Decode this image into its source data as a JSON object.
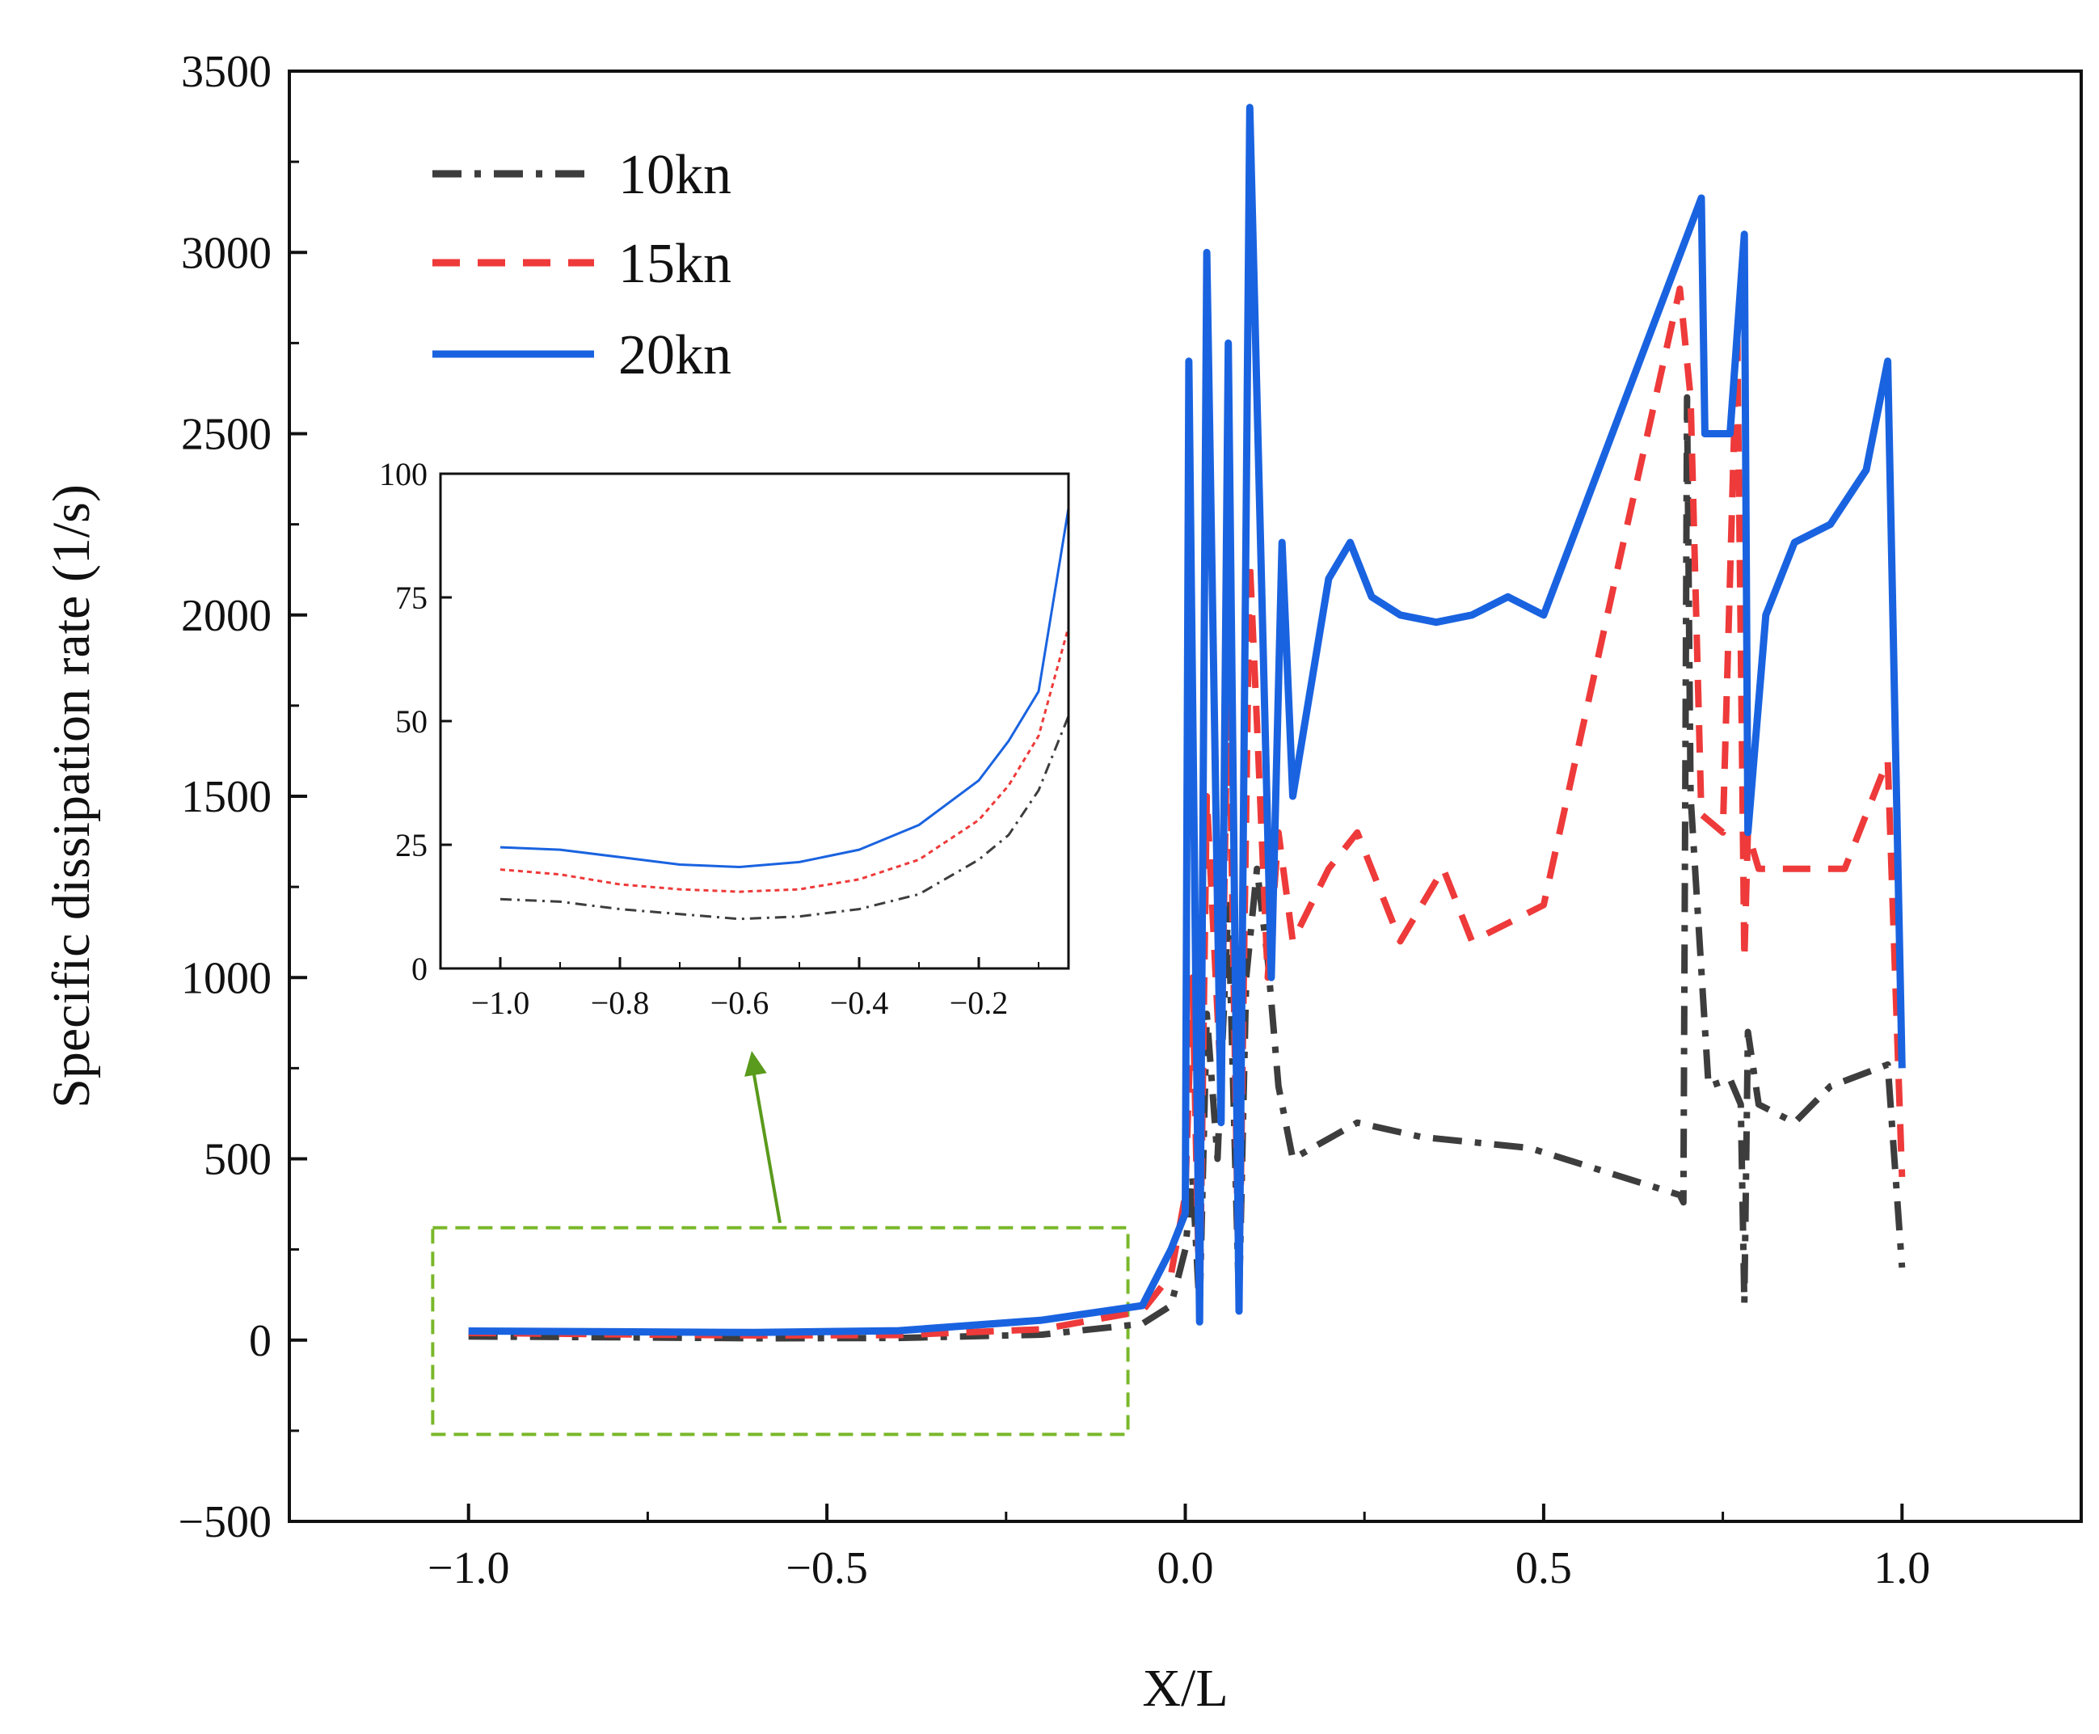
{
  "chart_data": [
    {
      "type": "line",
      "xlabel": "X/L",
      "ylabel": "Specific dissipation rate (1/s)",
      "xlim": [
        -1.25,
        1.25
      ],
      "ylim": [
        -500,
        3500
      ],
      "xticks": [
        "-1.0",
        "-0.5",
        "0.0",
        "0.5",
        "1.0"
      ],
      "yticks": [
        "-500",
        "0",
        "500",
        "1000",
        "1500",
        "2000",
        "2500",
        "3000",
        "3500"
      ],
      "legend_position": "top-left",
      "grid": false,
      "series": [
        {
          "name": "10kn",
          "color": "#3d3d3d",
          "style": "dashdot",
          "x": [
            -1.0,
            -0.8,
            -0.6,
            -0.4,
            -0.2,
            -0.06,
            -0.02,
            0.0,
            0.01,
            0.02,
            0.03,
            0.045,
            0.06,
            0.075,
            0.085,
            0.1,
            0.115,
            0.13,
            0.15,
            0.24,
            0.33,
            0.48,
            0.69,
            0.695,
            0.7,
            0.705,
            0.73,
            0.76,
            0.775,
            0.78,
            0.785,
            0.8,
            0.85,
            0.9,
            0.98,
            1.0
          ],
          "y": [
            10,
            8,
            5,
            6,
            15,
            45,
            95,
            250,
            450,
            80,
            900,
            500,
            1200,
            100,
            1000,
            1300,
            1050,
            700,
            500,
            600,
            560,
            530,
            400,
            380,
            2600,
            1500,
            700,
            720,
            650,
            100,
            850,
            650,
            600,
            700,
            760,
            200
          ]
        },
        {
          "name": "15kn",
          "color": "#ee3a3a",
          "style": "dashed",
          "x": [
            -1.0,
            -0.8,
            -0.6,
            -0.4,
            -0.2,
            -0.06,
            -0.02,
            0.0,
            0.01,
            0.02,
            0.03,
            0.05,
            0.06,
            0.075,
            0.09,
            0.1,
            0.115,
            0.13,
            0.15,
            0.2,
            0.24,
            0.3,
            0.36,
            0.4,
            0.5,
            0.6,
            0.69,
            0.705,
            0.72,
            0.75,
            0.77,
            0.78,
            0.785,
            0.8,
            0.85,
            0.92,
            0.98,
            1.0
          ],
          "y": [
            20,
            16,
            13,
            14,
            30,
            80,
            180,
            400,
            1000,
            60,
            1500,
            700,
            1900,
            80,
            2150,
            1700,
            1000,
            1400,
            1100,
            1300,
            1400,
            1100,
            1300,
            1100,
            1200,
            2100,
            2900,
            2600,
            1450,
            1400,
            2800,
            1050,
            1400,
            1300,
            1300,
            1300,
            1600,
            450
          ]
        },
        {
          "name": "20kn",
          "color": "#1a63e0",
          "style": "solid",
          "x": [
            -1.0,
            -0.8,
            -0.6,
            -0.4,
            -0.2,
            -0.06,
            -0.02,
            0.0,
            0.005,
            0.02,
            0.03,
            0.05,
            0.06,
            0.075,
            0.09,
            0.1,
            0.12,
            0.135,
            0.15,
            0.2,
            0.23,
            0.26,
            0.3,
            0.35,
            0.4,
            0.45,
            0.5,
            0.72,
            0.725,
            0.76,
            0.78,
            0.785,
            0.81,
            0.85,
            0.9,
            0.95,
            0.98,
            1.0
          ],
          "y": [
            25,
            23,
            21,
            26,
            55,
            95,
            250,
            350,
            2700,
            50,
            3000,
            600,
            2750,
            80,
            3400,
            2600,
            1000,
            2200,
            1500,
            2100,
            2200,
            2050,
            2000,
            1980,
            2000,
            2050,
            2000,
            3150,
            2500,
            2500,
            3050,
            1400,
            2000,
            2200,
            2250,
            2400,
            2700,
            750
          ]
        }
      ],
      "highlight_region": {
        "x": [
          -1.05,
          -0.08
        ],
        "y": [
          -260,
          310
        ]
      }
    },
    {
      "type": "line",
      "inset": true,
      "xlim": [
        -1.1,
        -0.05
      ],
      "ylim": [
        0,
        100
      ],
      "xticks": [
        "-1.0",
        "-0.8",
        "-0.6",
        "-0.4",
        "-0.2"
      ],
      "yticks": [
        "0",
        "25",
        "50",
        "75",
        "100"
      ],
      "series": [
        {
          "name": "10kn",
          "color": "#3d3d3d",
          "style": "dashdot",
          "x": [
            -1.0,
            -0.9,
            -0.8,
            -0.7,
            -0.6,
            -0.5,
            -0.4,
            -0.3,
            -0.2,
            -0.15,
            -0.1,
            -0.05
          ],
          "y": [
            14,
            13.5,
            12,
            11,
            10,
            10.5,
            12,
            15,
            22,
            27,
            36,
            51
          ]
        },
        {
          "name": "15kn",
          "color": "#ee3a3a",
          "style": "dotted",
          "x": [
            -1.0,
            -0.9,
            -0.8,
            -0.7,
            -0.6,
            -0.5,
            -0.4,
            -0.3,
            -0.2,
            -0.15,
            -0.1,
            -0.05
          ],
          "y": [
            20,
            19,
            17,
            16,
            15.5,
            16,
            18,
            22,
            30,
            37,
            47,
            69
          ]
        },
        {
          "name": "20kn",
          "color": "#1a63e0",
          "style": "solid",
          "x": [
            -1.0,
            -0.9,
            -0.8,
            -0.7,
            -0.6,
            -0.5,
            -0.4,
            -0.3,
            -0.2,
            -0.15,
            -0.1,
            -0.05
          ],
          "y": [
            24.5,
            24,
            22.5,
            21,
            20.5,
            21.5,
            24,
            29,
            38,
            46,
            56,
            93
          ]
        }
      ]
    }
  ]
}
